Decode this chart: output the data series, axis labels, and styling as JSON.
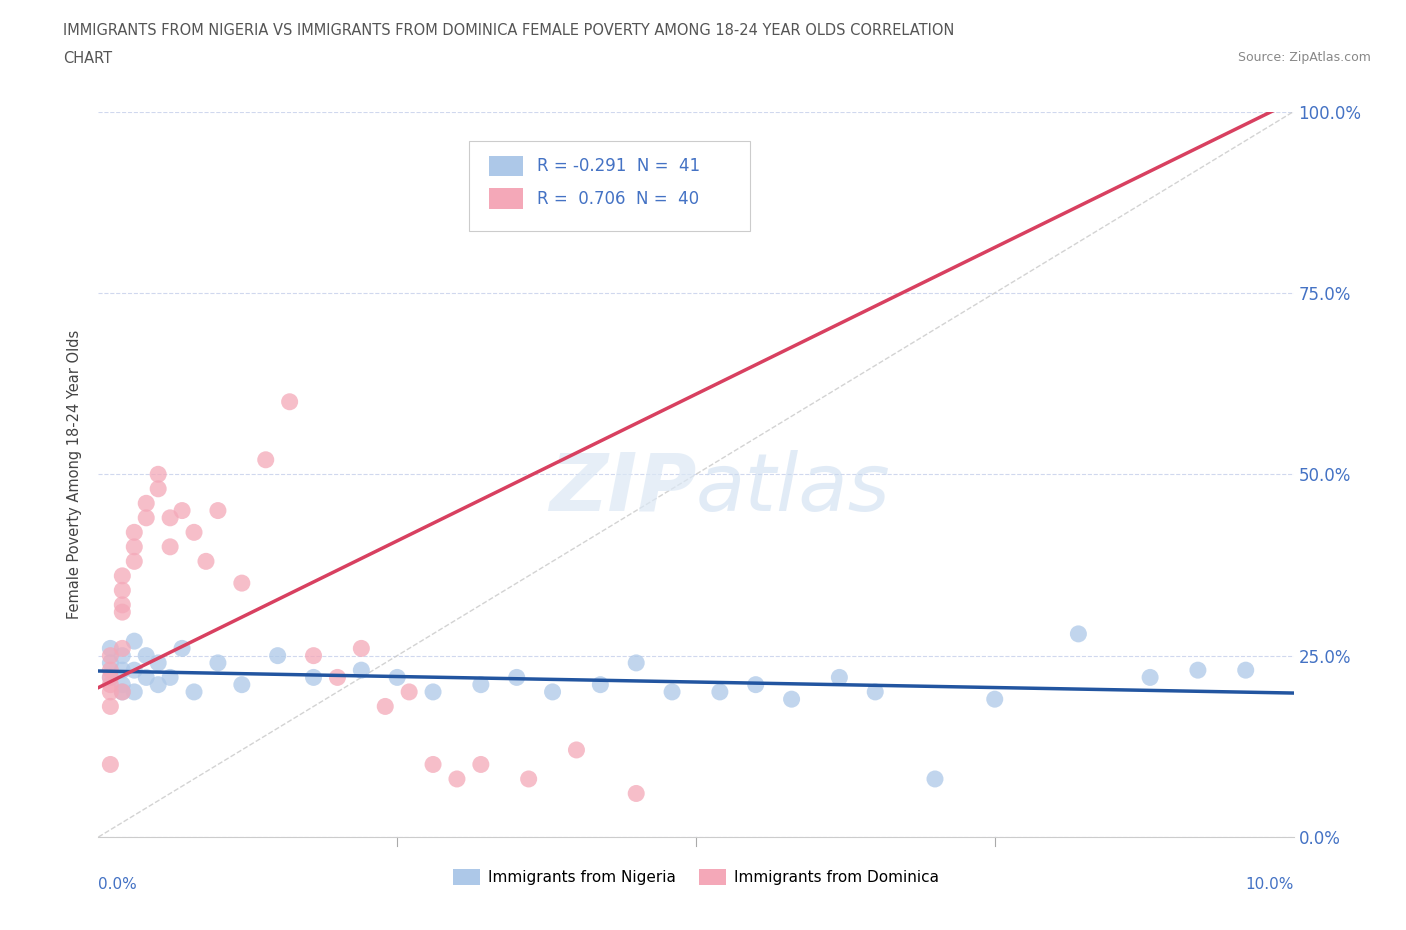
{
  "title_line1": "IMMIGRANTS FROM NIGERIA VS IMMIGRANTS FROM DOMINICA FEMALE POVERTY AMONG 18-24 YEAR OLDS CORRELATION",
  "title_line2": "CHART",
  "source": "Source: ZipAtlas.com",
  "ylabel": "Female Poverty Among 18-24 Year Olds",
  "xlim": [
    0,
    0.1
  ],
  "ylim": [
    0,
    1.0
  ],
  "nigeria_R": -0.291,
  "nigeria_N": 41,
  "dominica_R": 0.706,
  "dominica_N": 40,
  "nigeria_color": "#adc8e8",
  "dominica_color": "#f4a8b8",
  "nigeria_trend_color": "#2255a0",
  "dominica_trend_color": "#d84060",
  "ref_line_color": "#c8c8c8",
  "background_color": "#ffffff",
  "grid_color": "#d0d8ee",
  "legend_nigeria_label": "Immigrants from Nigeria",
  "legend_dominica_label": "Immigrants from Dominica",
  "nigeria_x": [
    0.001,
    0.001,
    0.001,
    0.002,
    0.002,
    0.002,
    0.002,
    0.003,
    0.003,
    0.003,
    0.004,
    0.004,
    0.005,
    0.005,
    0.006,
    0.007,
    0.008,
    0.01,
    0.012,
    0.015,
    0.018,
    0.022,
    0.025,
    0.028,
    0.032,
    0.035,
    0.038,
    0.042,
    0.045,
    0.048,
    0.052,
    0.055,
    0.058,
    0.062,
    0.065,
    0.07,
    0.075,
    0.082,
    0.088,
    0.092,
    0.096
  ],
  "nigeria_y": [
    0.26,
    0.24,
    0.22,
    0.25,
    0.23,
    0.21,
    0.2,
    0.27,
    0.23,
    0.2,
    0.25,
    0.22,
    0.24,
    0.21,
    0.22,
    0.26,
    0.2,
    0.24,
    0.21,
    0.25,
    0.22,
    0.23,
    0.22,
    0.2,
    0.21,
    0.22,
    0.2,
    0.21,
    0.24,
    0.2,
    0.2,
    0.21,
    0.19,
    0.22,
    0.2,
    0.08,
    0.19,
    0.28,
    0.22,
    0.23,
    0.23
  ],
  "dominica_x": [
    0.001,
    0.001,
    0.001,
    0.001,
    0.001,
    0.001,
    0.001,
    0.002,
    0.002,
    0.002,
    0.002,
    0.002,
    0.002,
    0.003,
    0.003,
    0.003,
    0.004,
    0.004,
    0.005,
    0.005,
    0.006,
    0.006,
    0.007,
    0.008,
    0.009,
    0.01,
    0.012,
    0.014,
    0.016,
    0.018,
    0.02,
    0.022,
    0.024,
    0.026,
    0.028,
    0.03,
    0.032,
    0.036,
    0.04,
    0.045
  ],
  "dominica_y": [
    0.25,
    0.23,
    0.22,
    0.21,
    0.2,
    0.18,
    0.1,
    0.36,
    0.34,
    0.32,
    0.31,
    0.26,
    0.2,
    0.42,
    0.4,
    0.38,
    0.46,
    0.44,
    0.5,
    0.48,
    0.44,
    0.4,
    0.45,
    0.42,
    0.38,
    0.45,
    0.35,
    0.52,
    0.6,
    0.25,
    0.22,
    0.26,
    0.18,
    0.2,
    0.1,
    0.08,
    0.1,
    0.08,
    0.12,
    0.06
  ]
}
